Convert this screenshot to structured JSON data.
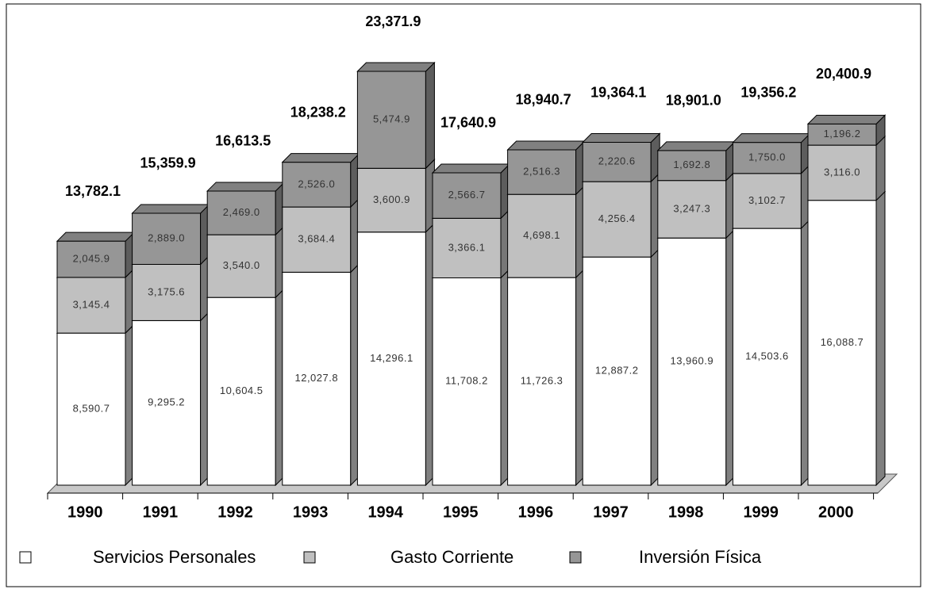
{
  "chart_data": {
    "type": "bar",
    "stacked": true,
    "categories": [
      "1990",
      "1991",
      "1992",
      "1993",
      "1994",
      "1995",
      "1996",
      "1997",
      "1998",
      "1999",
      "2000"
    ],
    "series": [
      {
        "name": "Servicios Personales",
        "color": "#ffffff",
        "values": [
          8590.7,
          9295.2,
          10604.5,
          12027.8,
          14296.1,
          11708.2,
          11726.3,
          12887.2,
          13960.9,
          14503.6,
          16088.7
        ],
        "value_labels": [
          "8,590.7",
          "9,295.2",
          "10,604.5",
          "12,027.8",
          "14,296.1",
          "11,708.2",
          "11,726.3",
          "12,887.2",
          "13,960.9",
          "14,503.6",
          "16,088.7"
        ]
      },
      {
        "name": "Gasto Corriente",
        "color": "#c0c0c0",
        "values": [
          3145.4,
          3175.6,
          3540.0,
          3684.4,
          3600.9,
          3366.1,
          4698.1,
          4256.4,
          3247.3,
          3102.7,
          3116.0
        ],
        "value_labels": [
          "3,145.4",
          "3,175.6",
          "3,540.0",
          "3,684.4",
          "3,600.9",
          "3,366.1",
          "4,698.1",
          "4,256.4",
          "3,247.3",
          "3,102.7",
          "3,116.0"
        ]
      },
      {
        "name": "Inversión Física",
        "color": "#969696",
        "values": [
          2045.9,
          2889.0,
          2469.0,
          2526.0,
          5474.9,
          2566.7,
          2516.3,
          2220.6,
          1692.8,
          1750.0,
          1196.2
        ],
        "value_labels": [
          "2,045.9",
          "2,889.0",
          "2,469.0",
          "2,526.0",
          "5,474.9",
          "2,566.7",
          "2,516.3",
          "2,220.6",
          "1,692.8",
          "1,750.0",
          "1,196.2"
        ]
      }
    ],
    "totals": {
      "values": [
        13782.1,
        15359.9,
        16613.5,
        18238.2,
        23371.9,
        17640.9,
        18940.7,
        19364.1,
        18901.0,
        19356.2,
        20400.9
      ],
      "value_labels": [
        "13,782.1",
        "15,359.9",
        "16,613.5",
        "18,238.2",
        "23,371.9",
        "17,640.9",
        "18,940.7",
        "19,364.1",
        "18,901.0",
        "19,356.2",
        "20,400.9"
      ]
    }
  }
}
